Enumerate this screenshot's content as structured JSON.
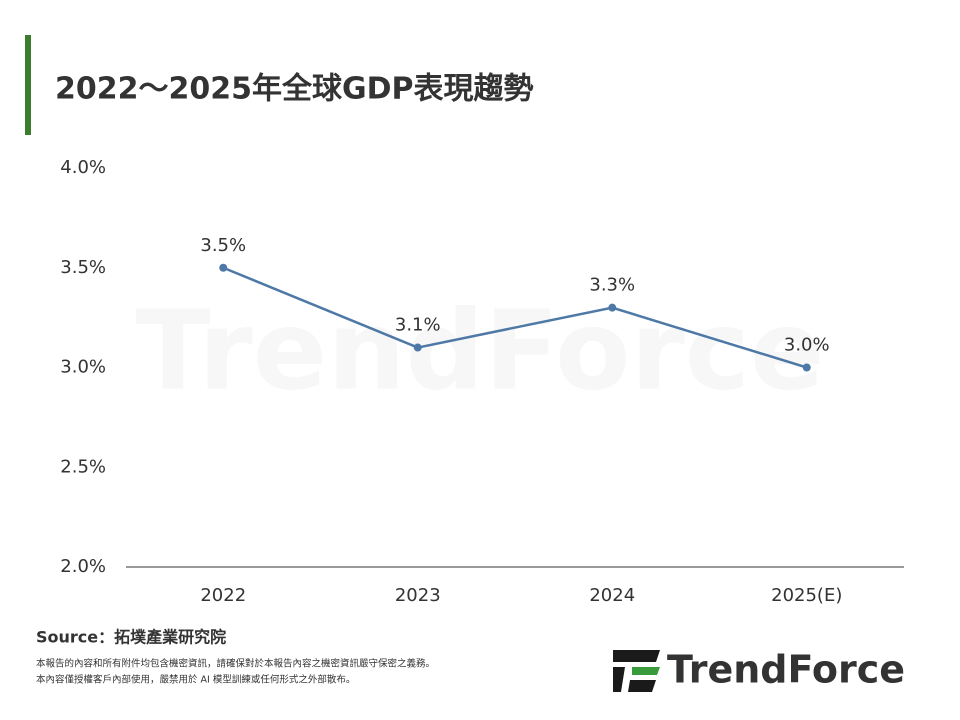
{
  "chart_data": {
    "type": "line",
    "title": "2022～2025年全球GDP表現趨勢",
    "categories": [
      "2022",
      "2023",
      "2024",
      "2025(E)"
    ],
    "values": [
      3.5,
      3.1,
      3.3,
      3.0
    ],
    "value_labels": [
      "3.5%",
      "3.1%",
      "3.3%",
      "3.0%"
    ],
    "color": "#4e79a7",
    "ylim": [
      2.0,
      4.0
    ],
    "yticks": [
      {
        "value": 2.0,
        "label": "2.0%"
      },
      {
        "value": 2.5,
        "label": "2.5%"
      },
      {
        "value": 3.0,
        "label": "3.0%"
      },
      {
        "value": 3.5,
        "label": "3.5%"
      },
      {
        "value": 4.0,
        "label": "4.0%"
      }
    ],
    "grid": false
  },
  "source": "Source：拓墣產業研究院",
  "disclaimer": [
    "本報告的內容和所有附件均包含機密資訊，請確保對於本報告內容之機密資訊嚴守保密之義務。",
    "本內容僅授權客戶內部使用，嚴禁用於 AI 模型訓練或任何形式之外部散布。"
  ],
  "logo": "TrendForce"
}
